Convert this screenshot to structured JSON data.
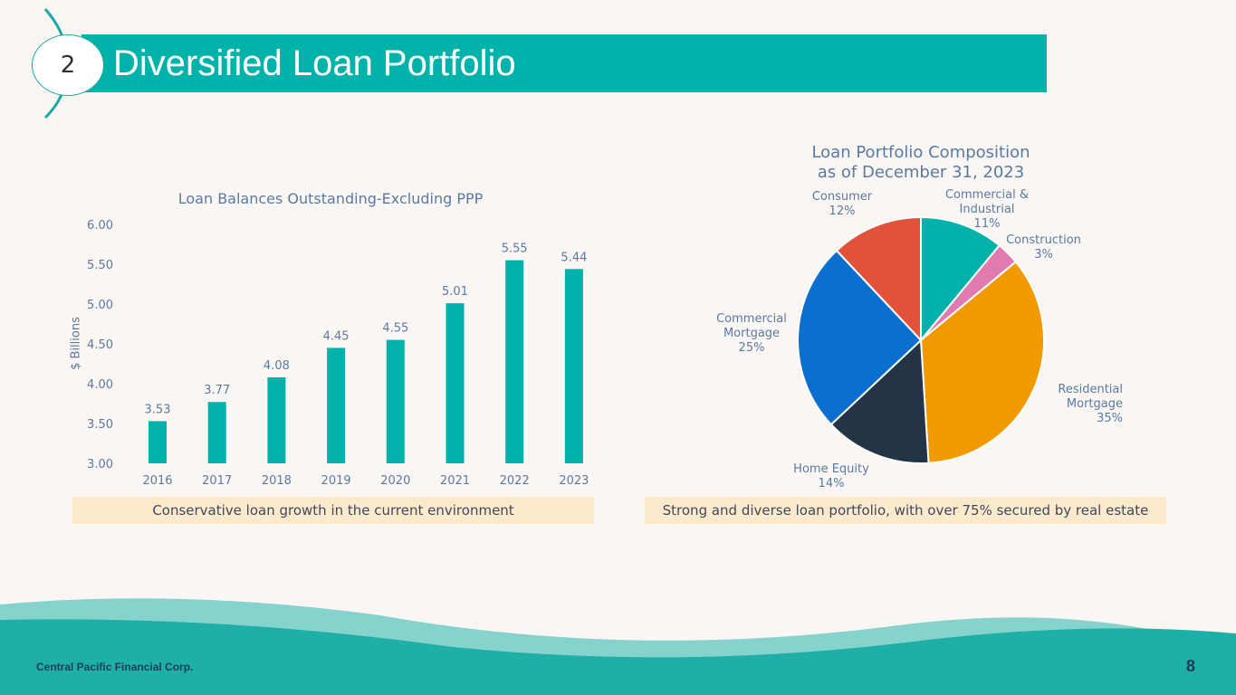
{
  "header": {
    "section_number": "2",
    "title": "Diversified Loan Portfolio"
  },
  "chart_data": [
    {
      "type": "bar",
      "title": "Loan Balances Outstanding-Excluding PPP",
      "ylabel": "$ Billions",
      "xlabel": "",
      "categories": [
        "2016",
        "2017",
        "2018",
        "2019",
        "2020",
        "2021",
        "2022",
        "2023"
      ],
      "values": [
        3.53,
        3.77,
        4.08,
        4.45,
        4.55,
        5.01,
        5.55,
        5.44
      ],
      "value_labels": [
        "3.53",
        "3.77",
        "4.08",
        "4.45",
        "4.55",
        "5.01",
        "5.55",
        "5.44"
      ],
      "ylim": [
        3.0,
        6.0
      ],
      "yticks": [
        "3.00",
        "3.50",
        "4.00",
        "4.50",
        "5.00",
        "5.50",
        "6.00"
      ],
      "grid": false,
      "color": "#00b2a9"
    },
    {
      "type": "pie",
      "title_line1": "Loan Portfolio Composition",
      "title_line2": "as of December 31, 2023",
      "slices": [
        {
          "name": "Commercial & Industrial",
          "line1": "Commercial &",
          "line2": "Industrial",
          "value": 11,
          "label": "11%",
          "color": "#00b2a9"
        },
        {
          "name": "Construction",
          "line1": "Construction",
          "line2": "",
          "value": 3,
          "label": "3%",
          "color": "#e07ab0"
        },
        {
          "name": "Residential Mortgage",
          "line1": "Residential",
          "line2": "Mortgage",
          "value": 35,
          "label": "35%",
          "color": "#f09a00"
        },
        {
          "name": "Home Equity",
          "line1": "Home Equity",
          "line2": "",
          "value": 14,
          "label": "14%",
          "color": "#243447"
        },
        {
          "name": "Commercial Mortgage",
          "line1": "Commercial",
          "line2": "Mortgage",
          "value": 25,
          "label": "25%",
          "color": "#0a6fcf"
        },
        {
          "name": "Consumer",
          "line1": "Consumer",
          "line2": "",
          "value": 12,
          "label": "12%",
          "color": "#e2513c"
        }
      ]
    }
  ],
  "callouts": {
    "left": "Conservative loan growth in the current environment",
    "right": "Strong and diverse loan portfolio, with over 75% secured by real estate"
  },
  "footer": {
    "company": "Central Pacific Financial Corp.",
    "page": "8"
  }
}
